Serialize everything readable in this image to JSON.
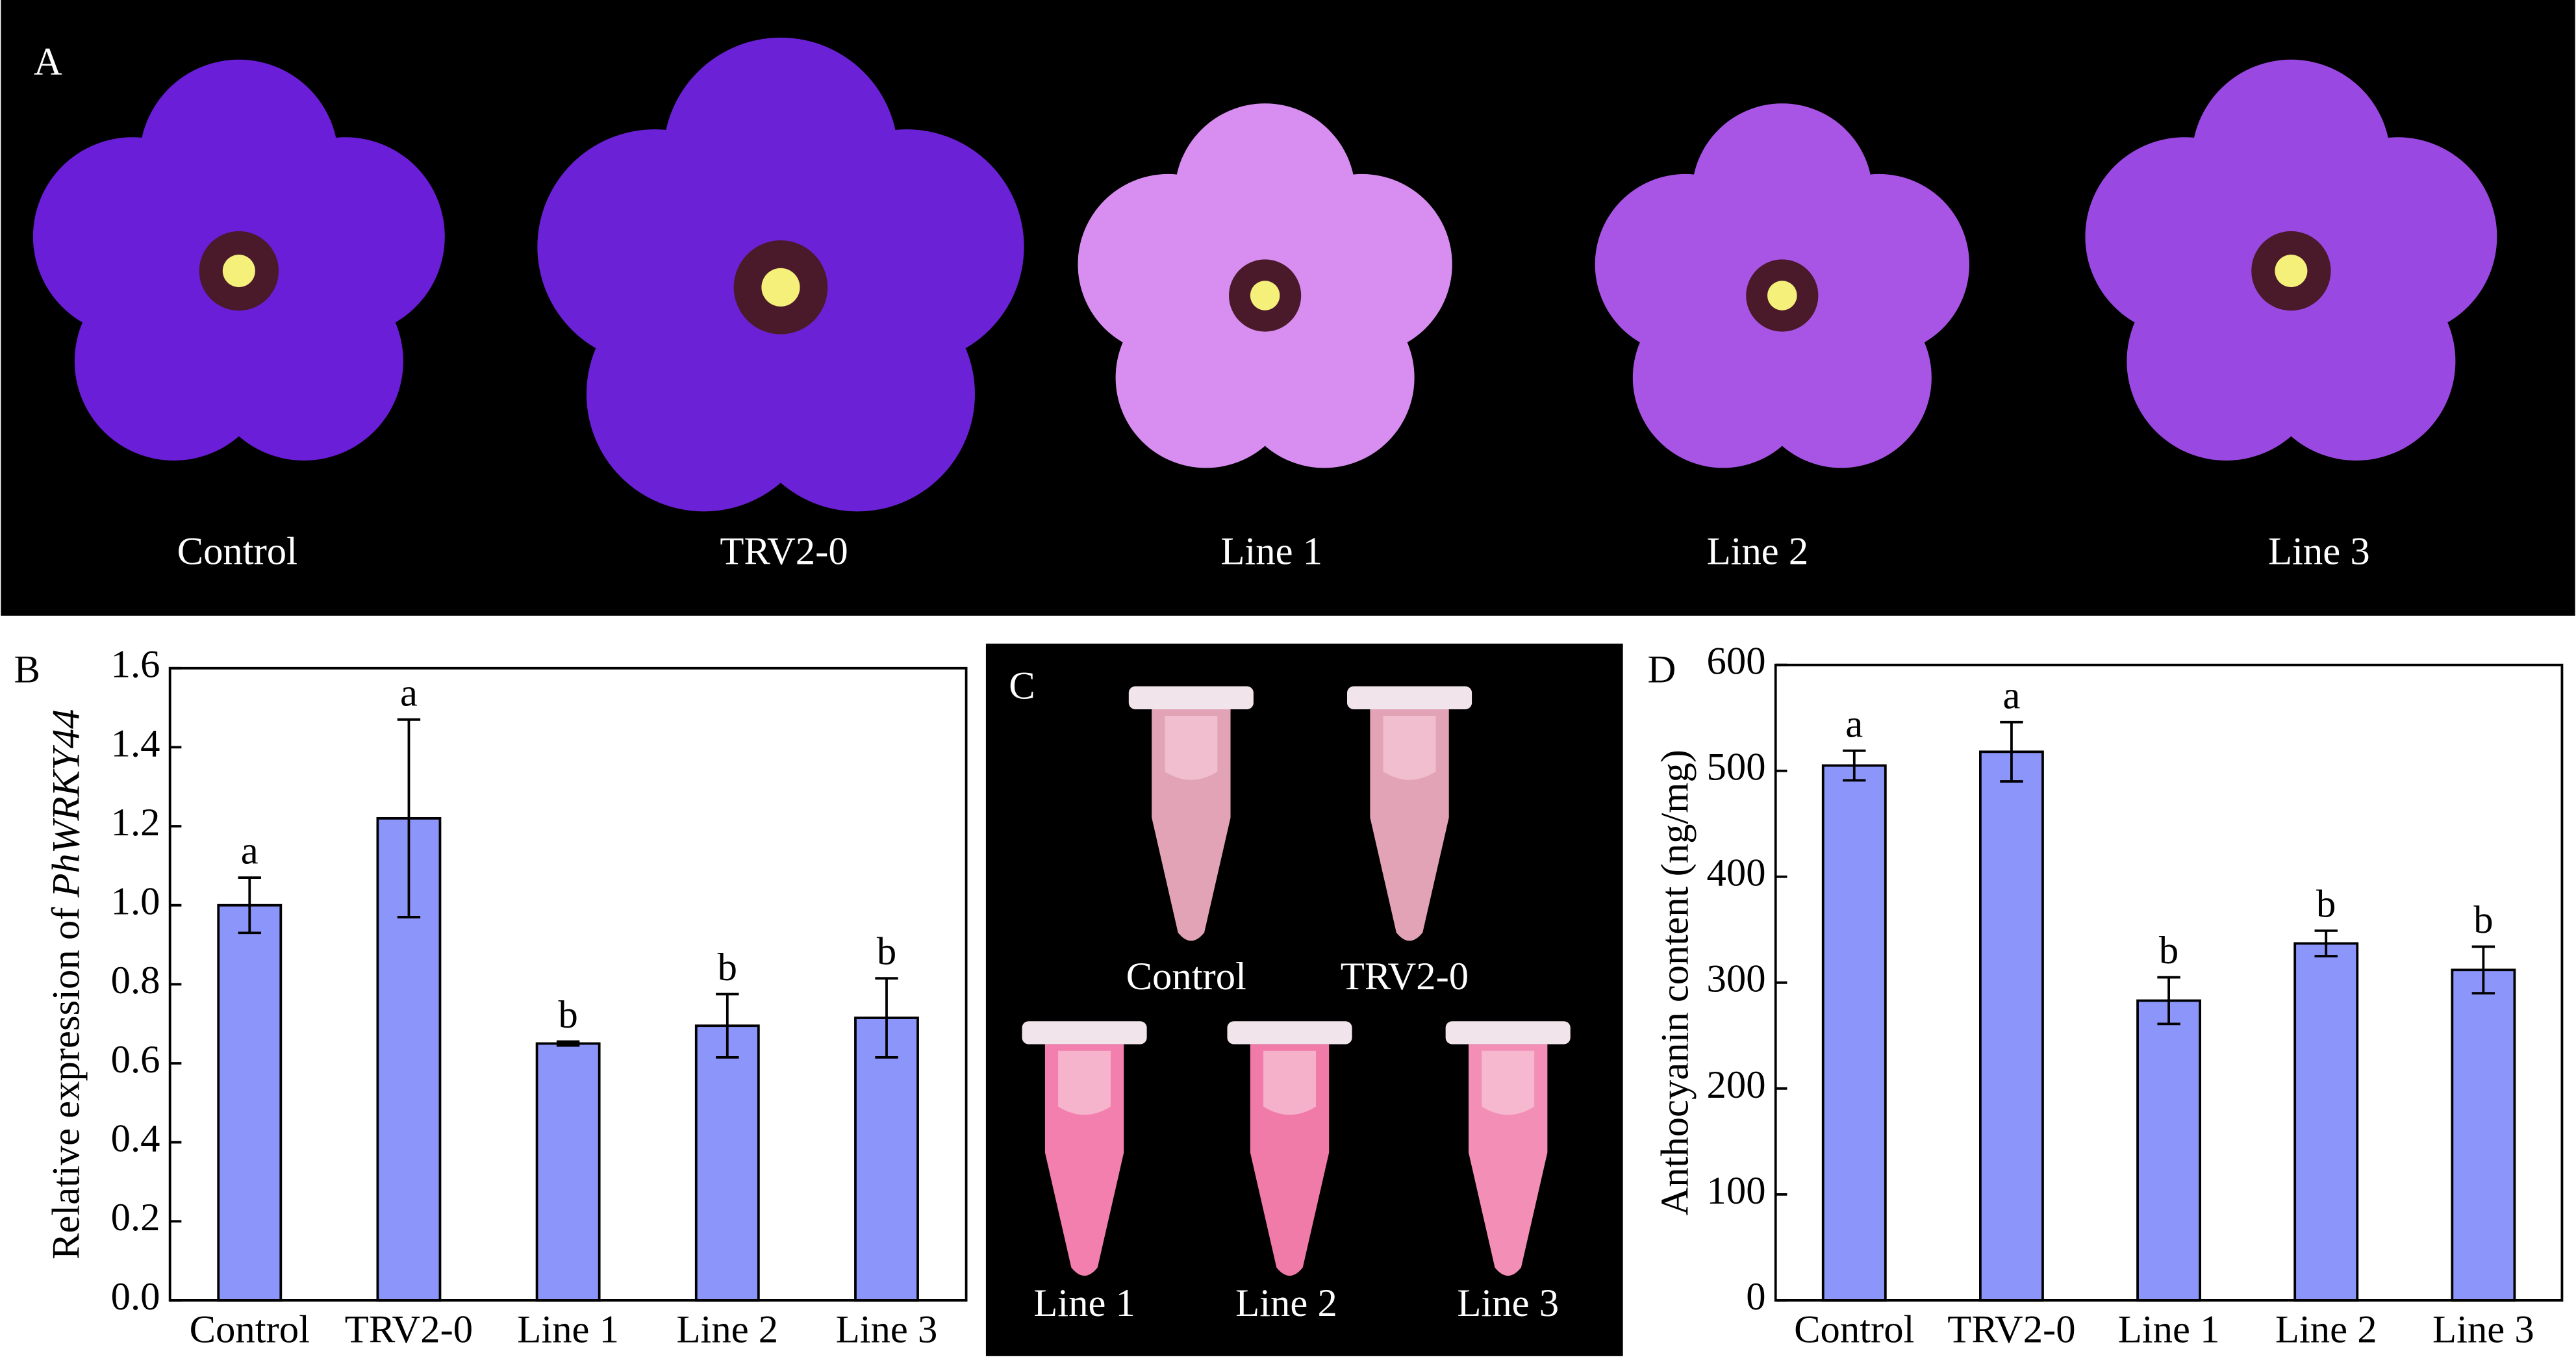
{
  "photo_panels": [
    {
      "label": "A",
      "captions": [
        "Control",
        "TRV2-0",
        "Line 1",
        "Line 2",
        "Line 3"
      ]
    },
    {
      "label": "C",
      "captions": [
        "Control",
        "TRV2-0",
        "Line 1",
        "Line 2",
        "Line 3"
      ]
    }
  ],
  "chart_data": [
    {
      "type": "bar",
      "panel_label": "B",
      "ylabel": "Relative expression of",
      "ylabel_italic": "PhWRKY44",
      "categories": [
        "Control",
        "TRV2-0",
        "Line 1",
        "Line 2",
        "Line 3"
      ],
      "values": [
        1.0,
        1.22,
        0.65,
        0.695,
        0.715
      ],
      "errors": [
        0.07,
        0.25,
        0.005,
        0.08,
        0.1
      ],
      "annotations": [
        "a",
        "a",
        "b",
        "b",
        "b"
      ],
      "color": "#8c96fa",
      "ylim": [
        0,
        1.6
      ],
      "yticks": [
        {
          "value": 0,
          "label": "0.0"
        },
        0.2,
        0.4,
        0.6,
        0.8,
        {
          "value": 1,
          "label": "1.0"
        },
        1.2,
        1.4,
        1.6
      ]
    },
    {
      "type": "bar",
      "panel_label": "D",
      "ylabel": "Anthocyanin content (ng/mg)",
      "categories": [
        "Control",
        "TRV2-0",
        "Line 1",
        "Line 2",
        "Line 3"
      ],
      "values": [
        505,
        518,
        283,
        337,
        312
      ],
      "errors": [
        14,
        28,
        22,
        12,
        22
      ],
      "annotations": [
        "a",
        "a",
        "b",
        "b",
        "b"
      ],
      "color": "#8c96fa",
      "ylim": [
        0,
        600
      ],
      "yticks": [
        0,
        100,
        200,
        300,
        400,
        500,
        600
      ]
    }
  ]
}
